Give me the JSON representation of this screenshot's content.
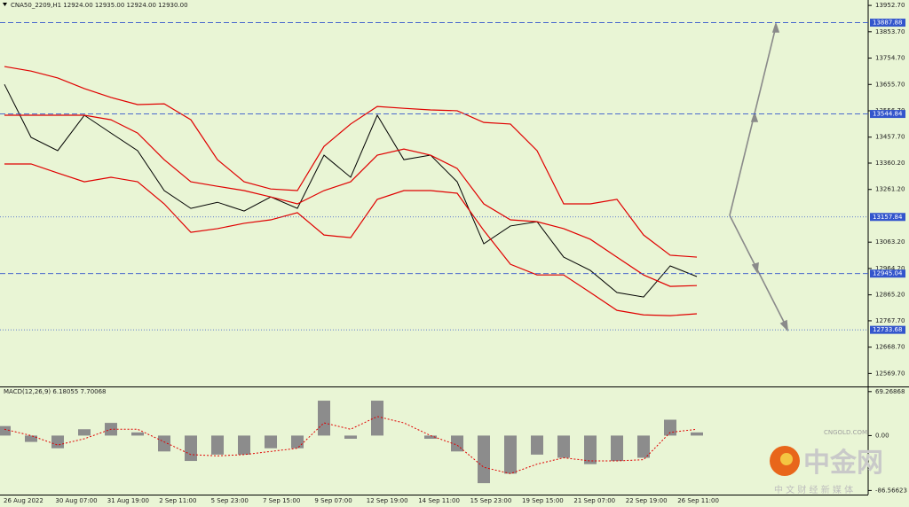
{
  "chart_data": [
    {
      "type": "line",
      "title": "CNA50_2209,H1  12924.00 12935.00 12924.00 12930.00",
      "ylim": [
        12521,
        13973
      ],
      "yticks": [
        {
          "value": 13952.7,
          "label": "13952.70"
        },
        {
          "value": 13853.7,
          "label": "13853.70"
        },
        {
          "value": 13754.7,
          "label": "13754.70"
        },
        {
          "value": 13655.7,
          "label": "13655.70"
        },
        {
          "value": 13556.7,
          "label": "13556.70"
        },
        {
          "value": 13457.7,
          "label": "13457.70"
        },
        {
          "value": 13360.2,
          "label": "13360.20"
        },
        {
          "value": 13261.2,
          "label": "13261.20"
        },
        {
          "value": 13063.2,
          "label": "13063.20"
        },
        {
          "value": 12964.2,
          "label": "12964.20"
        },
        {
          "value": 12865.2,
          "label": "12865.20"
        },
        {
          "value": 12767.7,
          "label": "12767.70"
        },
        {
          "value": 12668.7,
          "label": "12668.70"
        },
        {
          "value": 12569.7,
          "label": "12569.70"
        }
      ],
      "levels": [
        {
          "value": 13887.88,
          "style": "dashed"
        },
        {
          "value": 13544.84,
          "style": "dashed"
        },
        {
          "value": 13157.84,
          "style": "dotted"
        },
        {
          "value": 12945.04,
          "style": "dashed"
        },
        {
          "value": 12733.68,
          "style": "dotted"
        }
      ],
      "level_color": "#3355cc",
      "series": [
        {
          "color": "#000000",
          "values": [
            13656,
            13457,
            13407,
            13540,
            13473,
            13407,
            13257,
            13190,
            13213,
            13180,
            13233,
            13190,
            13390,
            13307,
            13540,
            13373,
            13390,
            13290,
            13057,
            13124,
            13140,
            13007,
            12957,
            12874,
            12857,
            12974,
            12934
          ]
        },
        {
          "color": "#e00000",
          "values": [
            13723,
            13706,
            13680,
            13640,
            13607,
            13580,
            13583,
            13523,
            13373,
            13290,
            13263,
            13257,
            13423,
            13507,
            13573,
            13566,
            13560,
            13557,
            13513,
            13507,
            13407,
            13207,
            13207,
            13224,
            13090,
            13014,
            13007
          ]
        },
        {
          "color": "#e00000",
          "values": [
            13540,
            13540,
            13540,
            13540,
            13523,
            13473,
            13373,
            13290,
            13273,
            13257,
            13233,
            13207,
            13257,
            13290,
            13390,
            13413,
            13390,
            13340,
            13207,
            13147,
            13140,
            13114,
            13074,
            13007,
            12940,
            12897,
            12900
          ]
        },
        {
          "color": "#e00000",
          "values": [
            13357,
            13357,
            13323,
            13290,
            13307,
            13290,
            13207,
            13100,
            13114,
            13134,
            13147,
            13174,
            13090,
            13080,
            13224,
            13257,
            13257,
            13247,
            13107,
            12980,
            12940,
            12940,
            12874,
            12807,
            12790,
            12787,
            12794
          ]
        }
      ],
      "date_labels": [
        "26 Aug 2022",
        "30 Aug 07:00",
        "31 Aug 19:00",
        "2 Sep 11:00",
        "5 Sep 23:00",
        "7 Sep 15:00",
        "9 Sep 07:00",
        "12 Sep 19:00",
        "14 Sep 11:00",
        "15 Sep 23:00",
        "19 Sep 15:00",
        "21 Sep 07:00",
        "22 Sep 19:00",
        "26 Sep 11:00"
      ]
    },
    {
      "type": "bar",
      "title": "MACD(12,26,9) 6.18055 7.70068",
      "ylim": [
        -93,
        76
      ],
      "yticks": [
        69.26868,
        {
          "value": 0,
          "label": "0.00"
        },
        -86.56623
      ],
      "color": "#8c8c8c",
      "values": [
        15,
        -10,
        -20,
        10,
        20,
        5,
        -25,
        -40,
        -30,
        -30,
        -20,
        -20,
        55,
        -5,
        55,
        0,
        -5,
        -25,
        -75,
        -60,
        -30,
        -35,
        -45,
        -40,
        -35,
        25,
        5
      ],
      "signal": {
        "color": "#e00000",
        "values": [
          10,
          0,
          -15,
          -5,
          10,
          10,
          -10,
          -30,
          -32,
          -30,
          -25,
          -20,
          20,
          10,
          30,
          20,
          0,
          -15,
          -50,
          -60,
          -45,
          -35,
          -40,
          -40,
          -38,
          5,
          10
        ]
      }
    }
  ],
  "watermark": {
    "title": "中金网",
    "url": "CNGOLD.COM",
    "tagline": "中 文 财 经 新 媒 体"
  }
}
